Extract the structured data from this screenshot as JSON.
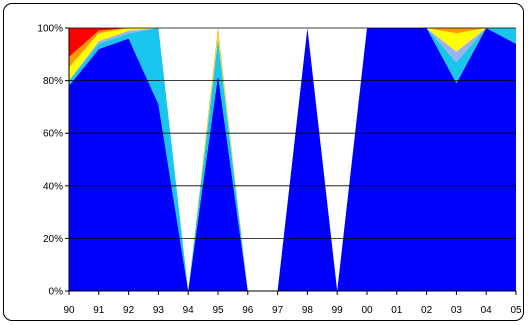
{
  "chart_data": {
    "type": "area",
    "stacked": true,
    "percent": true,
    "x": [
      "90",
      "91",
      "92",
      "93",
      "94",
      "95",
      "96",
      "97",
      "98",
      "99",
      "00",
      "01",
      "02",
      "03",
      "04",
      "05"
    ],
    "yticks": [
      "0%",
      "20%",
      "40%",
      "60%",
      "80%",
      "100%"
    ],
    "ylim": [
      0,
      100
    ],
    "grid": true,
    "legend": "none",
    "series": [
      {
        "color": "#0000ff",
        "values": [
          78,
          92,
          96,
          71,
          0,
          82,
          0,
          0,
          100,
          0,
          100,
          100,
          100,
          79,
          100,
          94
        ]
      },
      {
        "color": "#1bc6ee",
        "values": [
          2,
          2,
          2,
          29,
          0,
          14,
          0,
          0,
          0,
          0,
          0,
          0,
          0,
          8,
          0,
          6
        ]
      },
      {
        "color": "#9db3f0",
        "values": [
          0,
          1,
          1,
          0,
          0,
          0,
          0,
          0,
          0,
          0,
          0,
          0,
          0,
          4,
          0,
          0
        ]
      },
      {
        "color": "#ffff00",
        "values": [
          5,
          3,
          1,
          0,
          0,
          2,
          0,
          0,
          0,
          0,
          0,
          0,
          0,
          7,
          0,
          0
        ]
      },
      {
        "color": "#ff9900",
        "values": [
          4,
          1,
          0,
          0,
          0,
          2,
          0,
          0,
          0,
          0,
          0,
          0,
          0,
          2,
          0,
          0
        ]
      },
      {
        "color": "#ff0000",
        "values": [
          11,
          1,
          0,
          0,
          0,
          0,
          0,
          0,
          0,
          0,
          0,
          0,
          0,
          0,
          0,
          0
        ]
      }
    ]
  }
}
